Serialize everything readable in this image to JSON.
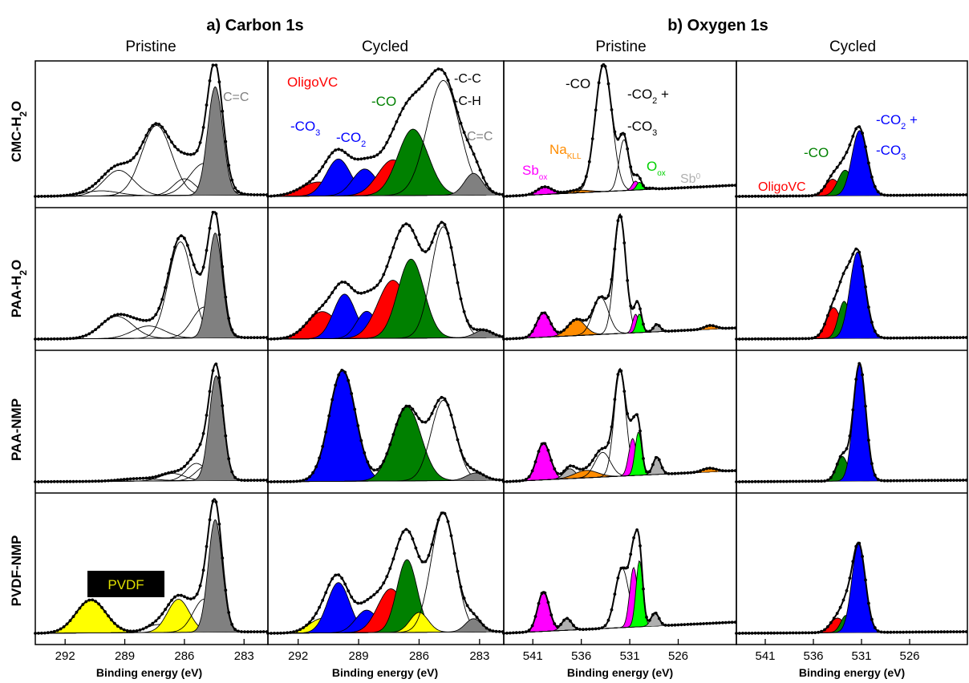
{
  "figure": {
    "section_titles": [
      "a) Carbon 1s",
      "b) Oxygen 1s"
    ],
    "column_titles": [
      "Pristine",
      "Cycled",
      "Pristine",
      "Cycled"
    ],
    "row_labels": [
      {
        "main": "CMC-H",
        "sub": "2",
        "tail": "O"
      },
      {
        "main": "PAA-H",
        "sub": "2",
        "tail": "O"
      },
      {
        "main": "PAA-NMP",
        "sub": "",
        "tail": ""
      },
      {
        "main": "PVDF-NMP",
        "sub": "",
        "tail": ""
      }
    ],
    "xlabel": "Binding energy (eV)",
    "carbon_ticks": [
      "292",
      "289",
      "286",
      "283"
    ],
    "oxygen_ticks": [
      "541",
      "536",
      "531",
      "526"
    ]
  },
  "colors": {
    "red": "#ff0000",
    "blue": "#0000ff",
    "green": "#008000",
    "gray": "#808080",
    "yellow": "#ffff00",
    "magenta": "#ff00ff",
    "orange": "#ff8c00",
    "lime": "#00ff00",
    "silver": "#b0b0b0",
    "envelope": "#000000"
  },
  "annotations": {
    "cc_pristine": "C=C",
    "cc_cycled": "C=C",
    "oligovc_c": "OligoVC",
    "co_c": "-CO",
    "co3_c": {
      "main": "-CO",
      "sub": "3"
    },
    "co2_c": {
      "main": "-CO",
      "sub": "2"
    },
    "ccc": "-C-C",
    "cch": "-C-H",
    "co_o": "-CO",
    "co2plus_o": {
      "main": "-CO",
      "sub": "2",
      "tail": " +"
    },
    "co3_o": {
      "main": "-CO",
      "sub": "3"
    },
    "sbox": {
      "main": "Sb",
      "sub": "ox"
    },
    "nakll": {
      "main": "Na",
      "sub": "KLL"
    },
    "oox": {
      "main": "O",
      "sub": "ox"
    },
    "sb0": {
      "main": "Sb",
      "sup": "0"
    },
    "co_o_cyc": "-CO",
    "co2plus_o_cyc": {
      "main": "-CO",
      "sub": "2",
      "tail": " +"
    },
    "co3_o_cyc": {
      "main": "-CO",
      "sub": "3"
    },
    "oligovc_o": "OligoVC",
    "pvdf_box": "PVDF"
  },
  "chart_data": [
    {
      "type": "area",
      "panel": "carbon-pristine-CMC-H2O",
      "xlim": [
        293.5,
        281.8
      ],
      "components": [
        {
          "color": "none",
          "center": 289.3,
          "width": 0.75,
          "height": 0.2
        },
        {
          "color": "none",
          "center": 290.2,
          "width": 0.9,
          "height": 0.04
        },
        {
          "color": "none",
          "center": 287.4,
          "width": 0.75,
          "height": 0.55
        },
        {
          "color": "none",
          "center": 286.0,
          "width": 0.55,
          "height": 0.13
        },
        {
          "color": "none",
          "center": 285.0,
          "width": 0.75,
          "height": 0.25
        },
        {
          "color": "gray",
          "center": 284.45,
          "width": 0.38,
          "height": 0.85
        }
      ]
    },
    {
      "type": "area",
      "panel": "carbon-cycled-CMC-H2O",
      "xlim": [
        293.5,
        281.8
      ],
      "components": [
        {
          "color": "red",
          "center": 291.0,
          "width": 0.85,
          "height": 0.11
        },
        {
          "color": "blue",
          "center": 290.0,
          "width": 0.6,
          "height": 0.29
        },
        {
          "color": "blue",
          "center": 288.7,
          "width": 0.6,
          "height": 0.21
        },
        {
          "color": "red",
          "center": 287.3,
          "width": 0.75,
          "height": 0.28
        },
        {
          "color": "green",
          "center": 286.3,
          "width": 0.75,
          "height": 0.52
        },
        {
          "color": "none",
          "center": 284.8,
          "width": 0.8,
          "height": 0.9
        },
        {
          "color": "gray",
          "center": 283.3,
          "width": 0.45,
          "height": 0.17
        }
      ]
    },
    {
      "type": "area",
      "panel": "oxygen-pristine-CMC-H2O",
      "xlim": [
        544,
        520
      ],
      "components": [
        {
          "color": "magenta",
          "center": 539.8,
          "width": 0.75,
          "height": 0.06
        },
        {
          "color": "orange",
          "center": 536.3,
          "width": 1.2,
          "height": 0.02
        },
        {
          "color": "none",
          "center": 533.7,
          "width": 0.85,
          "height": 1.0
        },
        {
          "color": "none",
          "center": 531.6,
          "width": 0.5,
          "height": 0.4
        },
        {
          "color": "magenta",
          "center": 530.4,
          "width": 0.35,
          "height": 0.07
        },
        {
          "color": "lime",
          "center": 530.0,
          "width": 0.3,
          "height": 0.06
        },
        {
          "color": "silver",
          "center": 528.9,
          "width": 0.4,
          "height": 0.01
        }
      ]
    },
    {
      "type": "area",
      "panel": "oxygen-cycled-CMC-H2O",
      "xlim": [
        544,
        520
      ],
      "components": [
        {
          "color": "red",
          "center": 534.0,
          "width": 0.75,
          "height": 0.13
        },
        {
          "color": "green",
          "center": 532.7,
          "width": 0.75,
          "height": 0.2
        },
        {
          "color": "blue",
          "center": 531.2,
          "width": 0.8,
          "height": 0.51
        }
      ]
    },
    {
      "type": "area",
      "panel": "carbon-pristine-PAA-H2O",
      "xlim": [
        293.5,
        281.8
      ],
      "components": [
        {
          "color": "none",
          "center": 289.4,
          "width": 0.8,
          "height": 0.18
        },
        {
          "color": "none",
          "center": 287.8,
          "width": 0.8,
          "height": 0.1
        },
        {
          "color": "none",
          "center": 286.2,
          "width": 0.6,
          "height": 0.78
        },
        {
          "color": "none",
          "center": 285.0,
          "width": 0.6,
          "height": 0.25
        },
        {
          "color": "gray",
          "center": 284.45,
          "width": 0.35,
          "height": 0.85
        }
      ]
    },
    {
      "type": "area",
      "panel": "carbon-cycled-PAA-H2O",
      "xlim": [
        293.5,
        281.8
      ],
      "components": [
        {
          "color": "red",
          "center": 290.8,
          "width": 0.75,
          "height": 0.22
        },
        {
          "color": "blue",
          "center": 289.7,
          "width": 0.55,
          "height": 0.36
        },
        {
          "color": "blue",
          "center": 288.6,
          "width": 0.5,
          "height": 0.22
        },
        {
          "color": "red",
          "center": 287.3,
          "width": 0.75,
          "height": 0.47
        },
        {
          "color": "green",
          "center": 286.4,
          "width": 0.65,
          "height": 0.64
        },
        {
          "color": "none",
          "center": 284.8,
          "width": 0.6,
          "height": 0.9
        },
        {
          "color": "gray",
          "center": 282.8,
          "width": 0.45,
          "height": 0.06
        }
      ]
    },
    {
      "type": "area",
      "panel": "oxygen-pristine-PAA-H2O",
      "xlim": [
        544,
        520
      ],
      "components": [
        {
          "color": "magenta",
          "center": 539.9,
          "width": 0.7,
          "height": 0.2
        },
        {
          "color": "orange",
          "center": 536.5,
          "width": 0.9,
          "height": 0.13
        },
        {
          "color": "none",
          "center": 534.0,
          "width": 0.8,
          "height": 0.3
        },
        {
          "color": "none",
          "center": 532.0,
          "width": 0.6,
          "height": 0.95
        },
        {
          "color": "magenta",
          "center": 530.4,
          "width": 0.3,
          "height": 0.15
        },
        {
          "color": "lime",
          "center": 530.0,
          "width": 0.3,
          "height": 0.15
        },
        {
          "color": "silver",
          "center": 528.2,
          "width": 0.35,
          "height": 0.06
        },
        {
          "color": "orange",
          "center": 522.7,
          "width": 0.6,
          "height": 0.03
        }
      ]
    },
    {
      "type": "area",
      "panel": "oxygen-cycled-PAA-H2O",
      "xlim": [
        544,
        520
      ],
      "components": [
        {
          "color": "red",
          "center": 533.9,
          "width": 0.75,
          "height": 0.25
        },
        {
          "color": "green",
          "center": 532.8,
          "width": 0.6,
          "height": 0.3
        },
        {
          "color": "blue",
          "center": 531.4,
          "width": 0.8,
          "height": 0.7
        }
      ]
    },
    {
      "type": "area",
      "panel": "carbon-pristine-PAA-NMP",
      "xlim": [
        293.5,
        281.8
      ],
      "components": [
        {
          "color": "none",
          "center": 288.3,
          "width": 0.9,
          "height": 0.02
        },
        {
          "color": "none",
          "center": 286.6,
          "width": 0.6,
          "height": 0.06
        },
        {
          "color": "none",
          "center": 285.4,
          "width": 0.5,
          "height": 0.14
        },
        {
          "color": "none",
          "center": 284.9,
          "width": 0.5,
          "height": 0.12
        },
        {
          "color": "gray",
          "center": 284.4,
          "width": 0.35,
          "height": 0.85
        }
      ]
    },
    {
      "type": "area",
      "panel": "carbon-cycled-PAA-NMP",
      "xlim": [
        293.5,
        281.8
      ],
      "components": [
        {
          "color": "blue",
          "center": 289.8,
          "width": 0.65,
          "height": 0.9
        },
        {
          "color": "green",
          "center": 286.6,
          "width": 0.7,
          "height": 0.6
        },
        {
          "color": "none",
          "center": 284.8,
          "width": 0.6,
          "height": 0.65
        },
        {
          "color": "gray",
          "center": 283.2,
          "width": 0.45,
          "height": 0.06
        }
      ]
    },
    {
      "type": "area",
      "panel": "oxygen-pristine-PAA-NMP",
      "xlim": [
        544,
        520
      ],
      "components": [
        {
          "color": "magenta",
          "center": 539.9,
          "width": 0.7,
          "height": 0.3
        },
        {
          "color": "silver",
          "center": 537.2,
          "width": 0.6,
          "height": 0.08
        },
        {
          "color": "orange",
          "center": 535.5,
          "width": 1.2,
          "height": 0.06
        },
        {
          "color": "none",
          "center": 533.8,
          "width": 0.8,
          "height": 0.2
        },
        {
          "color": "none",
          "center": 532.0,
          "width": 0.6,
          "height": 0.85
        },
        {
          "color": "magenta",
          "center": 530.7,
          "width": 0.4,
          "height": 0.3
        },
        {
          "color": "lime",
          "center": 530.1,
          "width": 0.35,
          "height": 0.35
        },
        {
          "color": "silver",
          "center": 528.2,
          "width": 0.4,
          "height": 0.14
        },
        {
          "color": "orange",
          "center": 522.8,
          "width": 0.7,
          "height": 0.03
        }
      ]
    },
    {
      "type": "area",
      "panel": "oxygen-cycled-PAA-NMP",
      "xlim": [
        544,
        520
      ],
      "components": [
        {
          "color": "green",
          "center": 533.0,
          "width": 0.6,
          "height": 0.2
        },
        {
          "color": "blue",
          "center": 531.2,
          "width": 0.65,
          "height": 0.95
        }
      ]
    },
    {
      "type": "area",
      "panel": "carbon-pristine-PVDF-NMP",
      "xlim": [
        293.5,
        281.8
      ],
      "components": [
        {
          "color": "yellow",
          "center": 290.7,
          "width": 0.75,
          "height": 0.25
        },
        {
          "color": "none",
          "center": 287.3,
          "width": 0.6,
          "height": 0.06
        },
        {
          "color": "yellow",
          "center": 286.3,
          "width": 0.55,
          "height": 0.25
        },
        {
          "color": "none",
          "center": 285.0,
          "width": 0.55,
          "height": 0.25
        },
        {
          "color": "gray",
          "center": 284.45,
          "width": 0.35,
          "height": 0.85
        }
      ]
    },
    {
      "type": "area",
      "panel": "carbon-cycled-PVDF-NMP",
      "xlim": [
        293.5,
        281.8
      ],
      "components": [
        {
          "color": "yellow",
          "center": 290.8,
          "width": 0.65,
          "height": 0.11
        },
        {
          "color": "blue",
          "center": 290.0,
          "width": 0.55,
          "height": 0.38
        },
        {
          "color": "blue",
          "center": 288.6,
          "width": 0.55,
          "height": 0.17
        },
        {
          "color": "red",
          "center": 287.4,
          "width": 0.65,
          "height": 0.33
        },
        {
          "color": "green",
          "center": 286.6,
          "width": 0.5,
          "height": 0.55
        },
        {
          "color": "yellow",
          "center": 286.0,
          "width": 0.45,
          "height": 0.15
        },
        {
          "color": "none",
          "center": 284.8,
          "width": 0.6,
          "height": 0.9
        },
        {
          "color": "gray",
          "center": 283.3,
          "width": 0.4,
          "height": 0.1
        }
      ]
    },
    {
      "type": "area",
      "panel": "oxygen-pristine-PVDF-NMP",
      "xlim": [
        544,
        520
      ],
      "components": [
        {
          "color": "magenta",
          "center": 539.9,
          "width": 0.6,
          "height": 0.3
        },
        {
          "color": "silver",
          "center": 537.5,
          "width": 0.5,
          "height": 0.09
        },
        {
          "color": "none",
          "center": 531.8,
          "width": 0.7,
          "height": 0.45
        },
        {
          "color": "magenta",
          "center": 530.6,
          "width": 0.4,
          "height": 0.45
        },
        {
          "color": "lime",
          "center": 530.0,
          "width": 0.35,
          "height": 0.5
        },
        {
          "color": "silver",
          "center": 528.4,
          "width": 0.4,
          "height": 0.1
        }
      ]
    },
    {
      "type": "area",
      "panel": "oxygen-cycled-PVDF-NMP",
      "xlim": [
        544,
        520
      ],
      "components": [
        {
          "color": "red",
          "center": 533.5,
          "width": 0.75,
          "height": 0.11
        },
        {
          "color": "green",
          "center": 532.6,
          "width": 0.55,
          "height": 0.13
        },
        {
          "color": "blue",
          "center": 531.3,
          "width": 0.7,
          "height": 0.67
        }
      ]
    }
  ]
}
